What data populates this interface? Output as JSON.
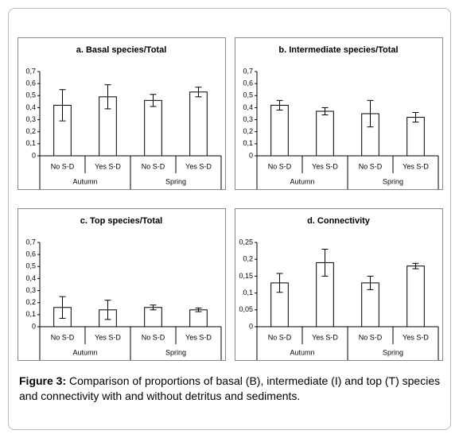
{
  "chart_data": [
    {
      "type": "bar",
      "title": "a. Basal species/Total",
      "categories": [
        "No S-D",
        "Yes S-D",
        "No S-D",
        "Yes S-D"
      ],
      "groups": [
        "Autumn",
        "Spring"
      ],
      "values": [
        0.42,
        0.49,
        0.46,
        0.53
      ],
      "errors": [
        0.13,
        0.1,
        0.05,
        0.04
      ],
      "color": "#ffffff",
      "ylim": [
        0,
        0.7
      ],
      "yticks": [
        0,
        {
          "value": 0.1,
          "label": "0,1"
        },
        {
          "value": 0.2,
          "label": "0,2"
        },
        {
          "value": 0.3,
          "label": "0,3"
        },
        {
          "value": 0.4,
          "label": "0,4"
        },
        {
          "value": 0.5,
          "label": "0,5"
        },
        {
          "value": 0.6,
          "label": "0,6"
        },
        {
          "value": 0.7,
          "label": "0,7"
        }
      ]
    },
    {
      "type": "bar",
      "title": "b. Intermediate species/Total",
      "categories": [
        "No S-D",
        "Yes S-D",
        "No S-D",
        "Yes S-D"
      ],
      "groups": [
        "Autumn",
        "Spring"
      ],
      "values": [
        0.42,
        0.37,
        0.35,
        0.32
      ],
      "errors": [
        0.04,
        0.03,
        0.11,
        0.04
      ],
      "color": "#ffffff",
      "ylim": [
        0,
        0.7
      ],
      "yticks": [
        0,
        {
          "value": 0.1,
          "label": "0,1"
        },
        {
          "value": 0.2,
          "label": "0,2"
        },
        {
          "value": 0.3,
          "label": "0,3"
        },
        {
          "value": 0.4,
          "label": "0,4"
        },
        {
          "value": 0.5,
          "label": "0,5"
        },
        {
          "value": 0.6,
          "label": "0,6"
        },
        {
          "value": 0.7,
          "label": "0,7"
        }
      ]
    },
    {
      "type": "bar",
      "title": "c. Top species/Total",
      "categories": [
        "No S-D",
        "Yes S-D",
        "No S-D",
        "Yes S-D"
      ],
      "groups": [
        "Autumn",
        "Spring"
      ],
      "values": [
        0.16,
        0.14,
        0.16,
        0.14
      ],
      "errors": [
        0.09,
        0.08,
        0.02,
        0.015
      ],
      "color": "#ffffff",
      "ylim": [
        0,
        0.7
      ],
      "yticks": [
        0,
        {
          "value": 0.1,
          "label": "0,1"
        },
        {
          "value": 0.2,
          "label": "0,2"
        },
        {
          "value": 0.3,
          "label": "0,3"
        },
        {
          "value": 0.4,
          "label": "0,4"
        },
        {
          "value": 0.5,
          "label": "0,5"
        },
        {
          "value": 0.6,
          "label": "0,6"
        },
        {
          "value": 0.7,
          "label": "0,7"
        }
      ]
    },
    {
      "type": "bar",
      "title": "d. Connectivity",
      "categories": [
        "No S-D",
        "Yes S-D",
        "No S-D",
        "Yes S-D"
      ],
      "groups": [
        "Autumn",
        "Spring"
      ],
      "values": [
        0.13,
        0.19,
        0.13,
        0.18
      ],
      "errors": [
        0.028,
        0.04,
        0.02,
        0.008
      ],
      "color": "#ffffff",
      "ylim": [
        0,
        0.25
      ],
      "yticks": [
        0,
        {
          "value": 0.05,
          "label": "0,05"
        },
        {
          "value": 0.1,
          "label": "0,1"
        },
        {
          "value": 0.15,
          "label": "0,15"
        },
        {
          "value": 0.2,
          "label": "0,2"
        },
        {
          "value": 0.25,
          "label": "0,25"
        }
      ]
    }
  ],
  "caption": {
    "label": "Figure 3:",
    "text": "Comparison of proportions of basal (B), intermediate (I) and top (T) species and connectivity with and without detritus and sediments."
  }
}
